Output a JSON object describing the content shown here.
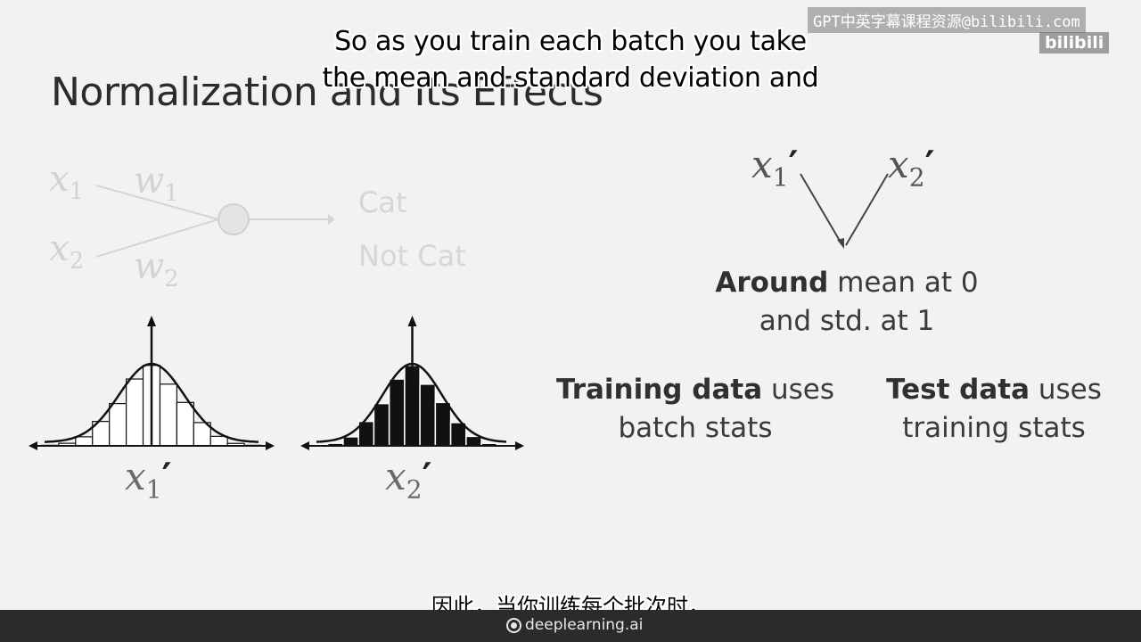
{
  "slide": {
    "title": "Normalization and Its Effects",
    "network": {
      "input_1": "x",
      "input_1_sub": "1",
      "input_2": "x",
      "input_2_sub": "2",
      "weight_1": "w",
      "weight_1_sub": "1",
      "weight_2": "w",
      "weight_2_sub": "2",
      "output_1": "Cat",
      "output_2": "Not Cat"
    },
    "distributions": [
      {
        "label": "x",
        "sub": "1",
        "prime": "′",
        "style": "outlined"
      },
      {
        "label": "x",
        "sub": "2",
        "prime": "′",
        "style": "filled"
      }
    ],
    "merge_diagram": {
      "left_label": "x",
      "left_sub": "1",
      "left_prime": "′",
      "right_label": "x",
      "right_sub": "2",
      "right_prime": "′"
    },
    "around_bold": "Around",
    "around_rest": " mean at 0",
    "around_line2": "and std. at 1",
    "training_bold": "Training data",
    "training_rest": " uses",
    "training_line2": "batch stats",
    "test_bold": "Test data",
    "test_rest": " uses",
    "test_line2": "training stats"
  },
  "subtitles": {
    "english_line1": "So as you train each batch you take",
    "english_line2": "the mean and standard deviation and",
    "chinese": "因此，当你训练每个批次时，"
  },
  "watermark": {
    "top": "GPT中英字幕课程资源@bilibili.com",
    "bottom": "bilibili"
  },
  "footer": {
    "brand": "deeplearning.ai"
  }
}
